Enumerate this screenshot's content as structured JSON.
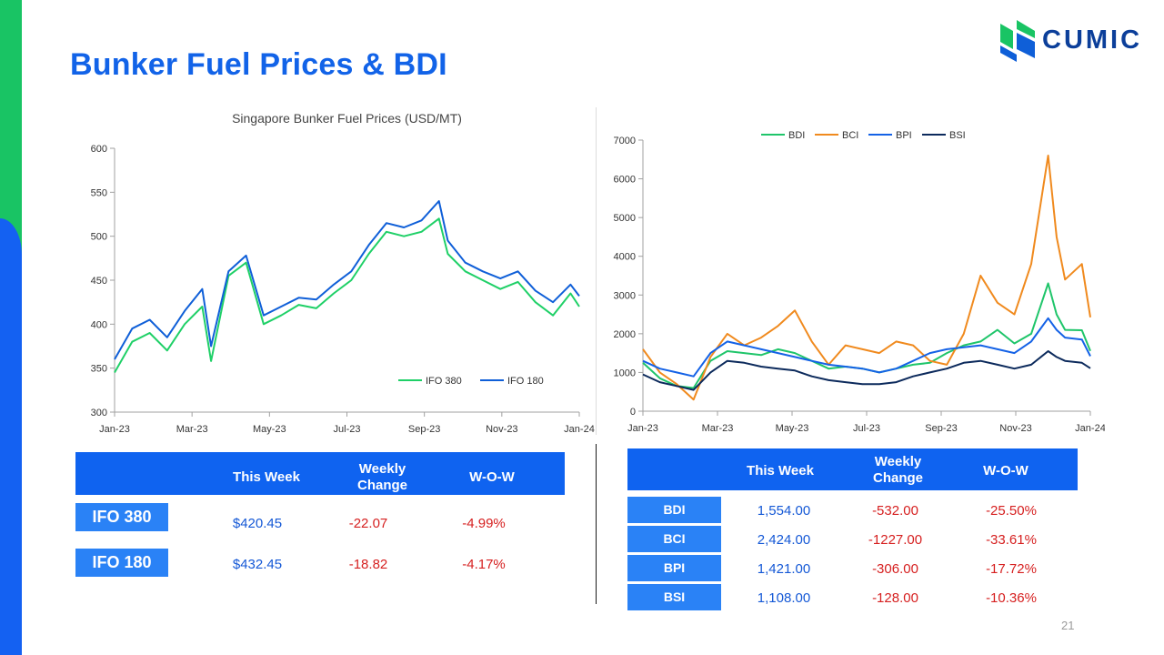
{
  "slide": {
    "title": "Bunker Fuel Prices & BDI",
    "page_number": "21",
    "logo_text": "CUMIC",
    "colors": {
      "green": "#19c464",
      "blue": "#1461f2",
      "title": "#1263e8"
    }
  },
  "chart_data": [
    {
      "type": "line",
      "title": "Singapore Bunker Fuel Prices (USD/MT)",
      "xlabel": "",
      "ylabel": "",
      "ylim": [
        300,
        600
      ],
      "yticks": [
        300,
        350,
        400,
        450,
        500,
        550,
        600
      ],
      "x_ticks": [
        "Jan-23",
        "Mar-23",
        "May-23",
        "Jul-23",
        "Sep-23",
        "Nov-23",
        "Jan-24"
      ],
      "legend_position": "bottom-right",
      "grid": false,
      "x": [
        "2023-01-02",
        "2023-01-16",
        "2023-01-30",
        "2023-02-13",
        "2023-02-27",
        "2023-03-13",
        "2023-03-20",
        "2023-04-03",
        "2023-04-17",
        "2023-05-01",
        "2023-05-15",
        "2023-05-29",
        "2023-06-12",
        "2023-06-26",
        "2023-07-10",
        "2023-07-24",
        "2023-08-07",
        "2023-08-21",
        "2023-09-04",
        "2023-09-18",
        "2023-09-25",
        "2023-10-09",
        "2023-10-23",
        "2023-11-06",
        "2023-11-20",
        "2023-12-04",
        "2023-12-18",
        "2024-01-01",
        "2024-01-08"
      ],
      "series": [
        {
          "name": "IFO 380",
          "color": "#1fd067",
          "values": [
            345,
            380,
            390,
            370,
            400,
            420,
            358,
            455,
            470,
            400,
            410,
            422,
            418,
            435,
            450,
            480,
            505,
            500,
            505,
            520,
            480,
            460,
            450,
            440,
            448,
            425,
            410,
            435,
            420
          ]
        },
        {
          "name": "IFO 180",
          "color": "#0f5fd8",
          "values": [
            360,
            395,
            405,
            385,
            415,
            440,
            375,
            460,
            478,
            410,
            420,
            430,
            428,
            445,
            460,
            490,
            515,
            510,
            518,
            540,
            495,
            470,
            460,
            452,
            460,
            438,
            425,
            445,
            432
          ]
        }
      ]
    },
    {
      "type": "line",
      "title": "",
      "xlabel": "",
      "ylabel": "",
      "ylim": [
        0,
        7000
      ],
      "yticks": [
        0,
        1000,
        2000,
        3000,
        4000,
        5000,
        6000,
        7000
      ],
      "x_ticks": [
        "Jan-23",
        "Mar-23",
        "May-23",
        "Jul-23",
        "Sep-23",
        "Nov-23",
        "Jan-24"
      ],
      "legend_position": "top",
      "grid": false,
      "x": [
        "2023-01-02",
        "2023-01-16",
        "2023-01-30",
        "2023-02-13",
        "2023-02-27",
        "2023-03-13",
        "2023-03-27",
        "2023-04-10",
        "2023-04-24",
        "2023-05-08",
        "2023-05-22",
        "2023-06-05",
        "2023-06-19",
        "2023-07-03",
        "2023-07-17",
        "2023-07-31",
        "2023-08-14",
        "2023-08-28",
        "2023-09-11",
        "2023-09-25",
        "2023-10-09",
        "2023-10-23",
        "2023-11-06",
        "2023-11-20",
        "2023-12-04",
        "2023-12-11",
        "2023-12-18",
        "2024-01-01",
        "2024-01-08"
      ],
      "series": [
        {
          "name": "BDI",
          "color": "#1fc56a",
          "values": [
            1250,
            850,
            650,
            600,
            1300,
            1550,
            1500,
            1450,
            1600,
            1500,
            1300,
            1100,
            1150,
            1100,
            1000,
            1100,
            1200,
            1250,
            1500,
            1700,
            1800,
            2100,
            1750,
            2000,
            3300,
            2500,
            2100,
            2090,
            1554
          ]
        },
        {
          "name": "BCI",
          "color": "#f08a1e",
          "values": [
            1600,
            1000,
            700,
            300,
            1400,
            2000,
            1700,
            1900,
            2200,
            2600,
            1800,
            1200,
            1700,
            1600,
            1500,
            1800,
            1700,
            1300,
            1200,
            2000,
            3500,
            2800,
            2500,
            3800,
            6600,
            4500,
            3400,
            3800,
            2424
          ]
        },
        {
          "name": "BPI",
          "color": "#1462e6",
          "values": [
            1300,
            1100,
            1000,
            900,
            1500,
            1800,
            1700,
            1600,
            1500,
            1400,
            1300,
            1200,
            1150,
            1100,
            1000,
            1100,
            1300,
            1500,
            1600,
            1650,
            1700,
            1600,
            1500,
            1800,
            2400,
            2100,
            1900,
            1850,
            1421
          ]
        },
        {
          "name": "BSI",
          "color": "#0c2a5c",
          "values": [
            950,
            750,
            650,
            550,
            1000,
            1300,
            1250,
            1150,
            1100,
            1050,
            900,
            800,
            750,
            700,
            700,
            750,
            900,
            1000,
            1100,
            1250,
            1300,
            1200,
            1100,
            1200,
            1550,
            1400,
            1300,
            1250,
            1108
          ]
        }
      ]
    }
  ],
  "fuel_table": {
    "headers": [
      "This Week",
      "Weekly Change",
      "W-O-W"
    ],
    "rows": [
      {
        "label": "IFO 380",
        "this_week": "$420.45",
        "weekly_change": "-22.07",
        "wow": "-4.99%"
      },
      {
        "label": "IFO 180",
        "this_week": "$432.45",
        "weekly_change": "-18.82",
        "wow": "-4.17%"
      }
    ]
  },
  "index_table": {
    "headers": [
      "This Week",
      "Weekly Change",
      "W-O-W"
    ],
    "rows": [
      {
        "label": "BDI",
        "this_week": "1,554.00",
        "weekly_change": "-532.00",
        "wow": "-25.50%"
      },
      {
        "label": "BCI",
        "this_week": "2,424.00",
        "weekly_change": "-1227.00",
        "wow": "-33.61%"
      },
      {
        "label": "BPI",
        "this_week": "1,421.00",
        "weekly_change": "-306.00",
        "wow": "-17.72%"
      },
      {
        "label": "BSI",
        "this_week": "1,108.00",
        "weekly_change": "-128.00",
        "wow": "-10.36%"
      }
    ]
  }
}
